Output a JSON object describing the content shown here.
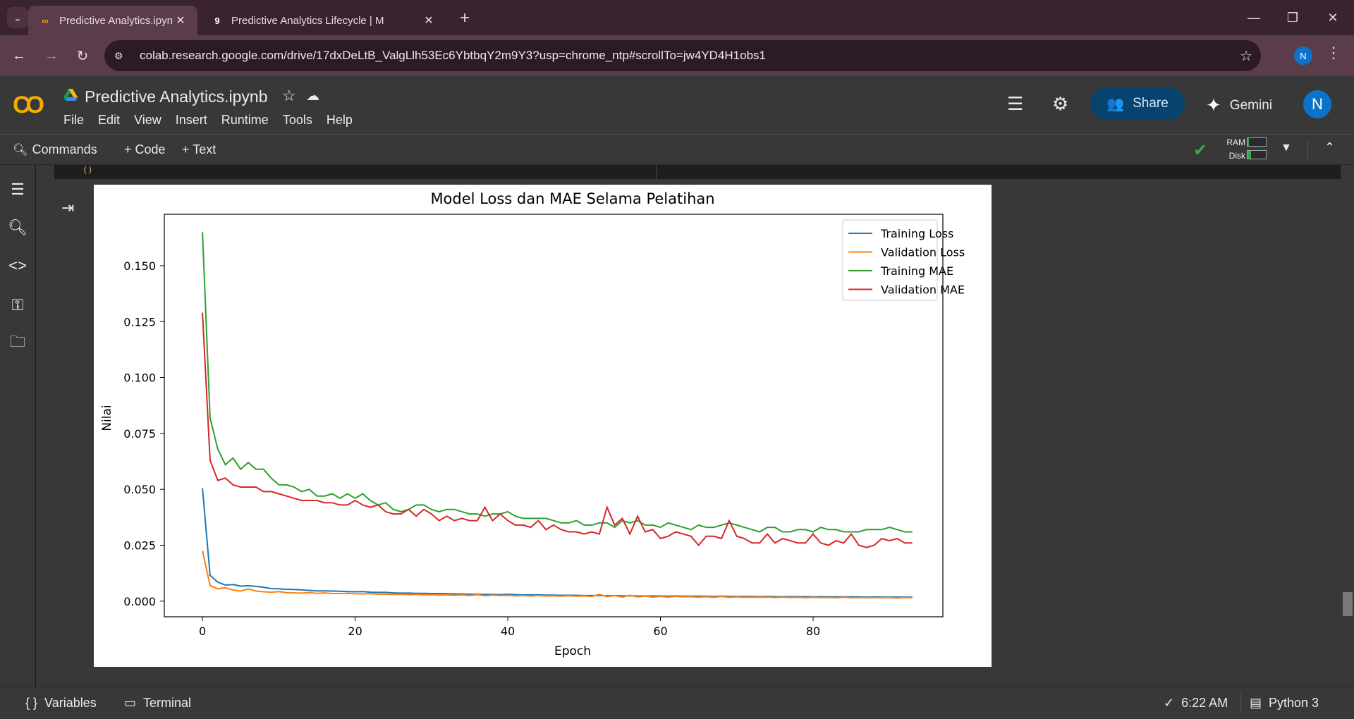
{
  "browser": {
    "tabs": [
      {
        "title": "Predictive Analytics.ipynb - Cola",
        "favicon": "colab-icon",
        "active": true
      },
      {
        "title": "Predictive Analytics Lifecycle | M",
        "favicon": "g-icon",
        "active": false
      }
    ],
    "url": "colab.research.google.com/drive/17dxDeLtB_ValgLlh53Ec6YbtbqY2m9Y3?usp=chrome_ntp#scrollTo=jw4YD4H1obs1",
    "profile_initial": "N"
  },
  "colab": {
    "notebook_title": "Predictive Analytics.ipynb",
    "menu": [
      "File",
      "Edit",
      "View",
      "Insert",
      "Runtime",
      "Tools",
      "Help"
    ],
    "share_label": "Share",
    "gemini_label": "Gemini",
    "avatar_initial": "N",
    "commands_label": "Commands",
    "add_code_label": "+ Code",
    "add_text_label": "+ Text",
    "ram_label": "RAM",
    "disk_label": "Disk",
    "code_fragment": "()"
  },
  "statusbar": {
    "variables_label": "Variables",
    "terminal_label": "Terminal",
    "time": "6:22 AM",
    "runtime": "Python 3"
  },
  "colors": {
    "training_loss": "#1f77b4",
    "validation_loss": "#ff7f0e",
    "training_mae": "#2ca02c",
    "validation_mae": "#d62728"
  },
  "chart_data": {
    "type": "line",
    "title": "Model Loss dan MAE Selama Pelatihan",
    "xlabel": "Epoch",
    "ylabel": "Nilai",
    "xlim": [
      -5,
      97
    ],
    "ylim": [
      -0.007,
      0.173
    ],
    "xticks": [
      0,
      20,
      40,
      60,
      80
    ],
    "yticks": [
      0.0,
      0.025,
      0.05,
      0.075,
      0.1,
      0.125,
      0.15
    ],
    "ytick_labels": [
      "0.000",
      "0.025",
      "0.050",
      "0.075",
      "0.100",
      "0.125",
      "0.150"
    ],
    "legend_position": "upper right",
    "series": [
      {
        "name": "Training Loss",
        "values": [
          0.0505,
          0.0115,
          0.0085,
          0.0072,
          0.0074,
          0.0067,
          0.0069,
          0.0066,
          0.0062,
          0.0056,
          0.0055,
          0.0053,
          0.0052,
          0.005,
          0.0048,
          0.0046,
          0.0046,
          0.0045,
          0.0044,
          0.0043,
          0.0042,
          0.0043,
          0.004,
          0.0039,
          0.0039,
          0.0037,
          0.0036,
          0.0036,
          0.0035,
          0.0035,
          0.0034,
          0.0034,
          0.0033,
          0.0032,
          0.0032,
          0.0031,
          0.0031,
          0.003,
          0.003,
          0.0029,
          0.0031,
          0.0029,
          0.0028,
          0.0028,
          0.0028,
          0.0027,
          0.0027,
          0.0026,
          0.0026,
          0.0026,
          0.0025,
          0.0025,
          0.0025,
          0.0024,
          0.0025,
          0.0024,
          0.0024,
          0.0023,
          0.0023,
          0.0023,
          0.0023,
          0.0022,
          0.0023,
          0.0022,
          0.0022,
          0.0022,
          0.0022,
          0.0021,
          0.0022,
          0.0021,
          0.0021,
          0.0021,
          0.0021,
          0.002,
          0.0021,
          0.002,
          0.002,
          0.002,
          0.002,
          0.002,
          0.0019,
          0.002,
          0.0019,
          0.0019,
          0.0019,
          0.0019,
          0.0019,
          0.0018,
          0.0019,
          0.0018,
          0.0018,
          0.0018,
          0.0018,
          0.0018
        ]
      },
      {
        "name": "Validation Loss",
        "values": [
          0.0225,
          0.007,
          0.0055,
          0.006,
          0.005,
          0.0045,
          0.0055,
          0.0045,
          0.0042,
          0.004,
          0.0043,
          0.0038,
          0.0037,
          0.0036,
          0.0038,
          0.0035,
          0.0037,
          0.0034,
          0.0034,
          0.0035,
          0.0033,
          0.0032,
          0.0033,
          0.0031,
          0.0031,
          0.003,
          0.0031,
          0.0029,
          0.003,
          0.0028,
          0.0029,
          0.0027,
          0.0028,
          0.0026,
          0.0028,
          0.0025,
          0.0029,
          0.0024,
          0.0027,
          0.0025,
          0.0026,
          0.0024,
          0.0025,
          0.0023,
          0.0025,
          0.0023,
          0.0024,
          0.0022,
          0.0024,
          0.0022,
          0.0023,
          0.0021,
          0.003,
          0.002,
          0.0025,
          0.0018,
          0.0026,
          0.0019,
          0.0022,
          0.0018,
          0.0021,
          0.0018,
          0.0021,
          0.0019,
          0.002,
          0.0018,
          0.002,
          0.0017,
          0.0021,
          0.0017,
          0.0019,
          0.0017,
          0.0018,
          0.0017,
          0.0018,
          0.0016,
          0.0018,
          0.0016,
          0.0017,
          0.0015,
          0.0017,
          0.0016,
          0.0016,
          0.0015,
          0.0017,
          0.0015,
          0.0016,
          0.0015,
          0.0016,
          0.0015,
          0.0016,
          0.0014,
          0.0016,
          0.0015
        ]
      },
      {
        "name": "Training MAE",
        "values": [
          0.165,
          0.082,
          0.068,
          0.061,
          0.064,
          0.059,
          0.062,
          0.059,
          0.059,
          0.055,
          0.052,
          0.052,
          0.051,
          0.049,
          0.05,
          0.047,
          0.047,
          0.048,
          0.046,
          0.048,
          0.046,
          0.048,
          0.045,
          0.043,
          0.044,
          0.041,
          0.04,
          0.041,
          0.043,
          0.043,
          0.041,
          0.04,
          0.041,
          0.041,
          0.04,
          0.039,
          0.039,
          0.038,
          0.039,
          0.039,
          0.04,
          0.038,
          0.037,
          0.037,
          0.037,
          0.037,
          0.036,
          0.035,
          0.035,
          0.036,
          0.034,
          0.034,
          0.035,
          0.035,
          0.033,
          0.036,
          0.035,
          0.036,
          0.034,
          0.034,
          0.033,
          0.035,
          0.034,
          0.033,
          0.032,
          0.034,
          0.033,
          0.033,
          0.034,
          0.035,
          0.034,
          0.033,
          0.032,
          0.031,
          0.033,
          0.033,
          0.031,
          0.031,
          0.032,
          0.032,
          0.031,
          0.033,
          0.032,
          0.032,
          0.031,
          0.031,
          0.031,
          0.032,
          0.032,
          0.032,
          0.033,
          0.032,
          0.031,
          0.031
        ]
      },
      {
        "name": "Validation MAE",
        "values": [
          0.129,
          0.063,
          0.054,
          0.055,
          0.052,
          0.051,
          0.051,
          0.051,
          0.049,
          0.049,
          0.048,
          0.047,
          0.046,
          0.045,
          0.045,
          0.045,
          0.044,
          0.044,
          0.043,
          0.043,
          0.045,
          0.043,
          0.042,
          0.043,
          0.04,
          0.039,
          0.039,
          0.041,
          0.038,
          0.041,
          0.039,
          0.036,
          0.038,
          0.036,
          0.037,
          0.036,
          0.036,
          0.042,
          0.036,
          0.039,
          0.036,
          0.034,
          0.034,
          0.033,
          0.036,
          0.032,
          0.034,
          0.032,
          0.031,
          0.031,
          0.03,
          0.031,
          0.03,
          0.042,
          0.034,
          0.037,
          0.03,
          0.038,
          0.031,
          0.032,
          0.028,
          0.029,
          0.031,
          0.03,
          0.029,
          0.025,
          0.029,
          0.029,
          0.028,
          0.036,
          0.029,
          0.028,
          0.026,
          0.026,
          0.03,
          0.026,
          0.028,
          0.027,
          0.026,
          0.026,
          0.03,
          0.026,
          0.025,
          0.027,
          0.026,
          0.03,
          0.025,
          0.024,
          0.025,
          0.028,
          0.027,
          0.028,
          0.026,
          0.026
        ]
      }
    ]
  }
}
